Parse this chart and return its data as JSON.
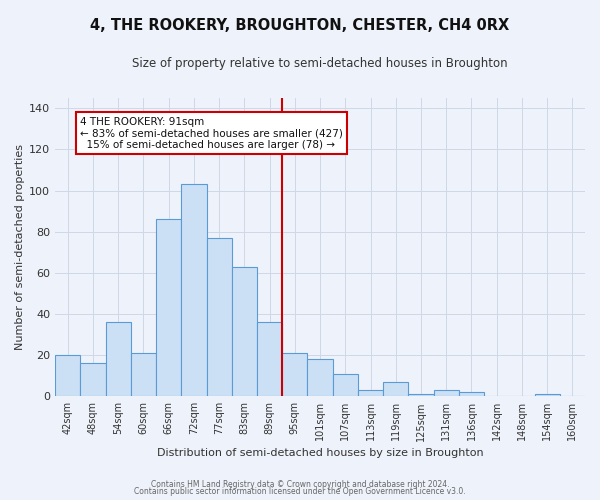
{
  "title": "4, THE ROOKERY, BROUGHTON, CHESTER, CH4 0RX",
  "subtitle": "Size of property relative to semi-detached houses in Broughton",
  "xlabel": "Distribution of semi-detached houses by size in Broughton",
  "ylabel": "Number of semi-detached properties",
  "bar_labels": [
    "42sqm",
    "48sqm",
    "54sqm",
    "60sqm",
    "66sqm",
    "72sqm",
    "77sqm",
    "83sqm",
    "89sqm",
    "95sqm",
    "101sqm",
    "107sqm",
    "113sqm",
    "119sqm",
    "125sqm",
    "131sqm",
    "136sqm",
    "142sqm",
    "148sqm",
    "154sqm",
    "160sqm"
  ],
  "bar_values": [
    20,
    16,
    36,
    21,
    86,
    103,
    77,
    63,
    36,
    21,
    18,
    11,
    3,
    7,
    1,
    3,
    2,
    0,
    0,
    1,
    0
  ],
  "bar_color": "#cce0f5",
  "bar_edge_color": "#5b9bd5",
  "marker_label": "4 THE ROOKERY: 91sqm",
  "pct_smaller": 83,
  "pct_smaller_count": 427,
  "pct_larger": 15,
  "pct_larger_count": 78,
  "marker_line_color": "#cc0000",
  "annotation_box_color": "#ffffff",
  "annotation_box_edge": "#cc0000",
  "ylim": [
    0,
    145
  ],
  "yticks": [
    0,
    20,
    40,
    60,
    80,
    100,
    120,
    140
  ],
  "grid_color": "#d0d8e8",
  "bg_color": "#eef2fa",
  "footer1": "Contains HM Land Registry data © Crown copyright and database right 2024.",
  "footer2": "Contains public sector information licensed under the Open Government Licence v3.0."
}
